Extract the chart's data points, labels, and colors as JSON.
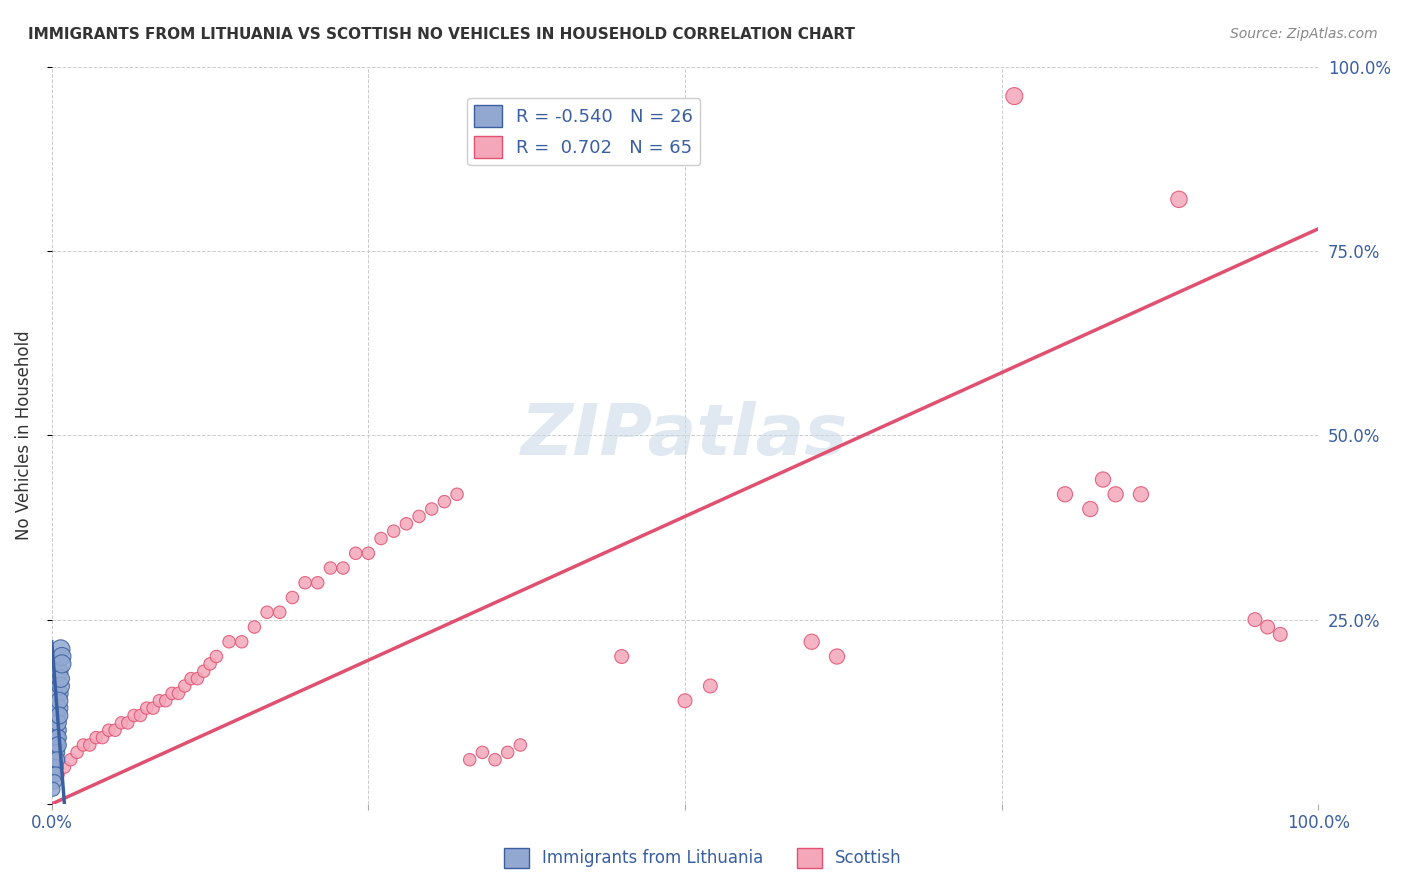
{
  "title": "IMMIGRANTS FROM LITHUANIA VS SCOTTISH NO VEHICLES IN HOUSEHOLD CORRELATION CHART",
  "source": "Source: ZipAtlas.com",
  "ylabel": "No Vehicles in Household",
  "xlabel": "",
  "watermark": "ZIPatlas",
  "legend_blue_r": "-0.540",
  "legend_blue_n": "26",
  "legend_pink_r": "0.702",
  "legend_pink_n": "65",
  "xlim": [
    0.0,
    1.0
  ],
  "ylim": [
    0.0,
    1.0
  ],
  "xticks": [
    0.0,
    0.25,
    0.5,
    0.75,
    1.0
  ],
  "yticks": [
    0.0,
    0.25,
    0.5,
    0.75,
    1.0
  ],
  "xticklabels": [
    "0.0%",
    "",
    "",
    "",
    "100.0%"
  ],
  "yticklabels": [
    "",
    "25.0%",
    "50.0%",
    "75.0%",
    "100.0%"
  ],
  "blue_color": "#92a8d1",
  "pink_color": "#f4a7b9",
  "blue_line_color": "#3a5fa0",
  "pink_line_color": "#e05070",
  "blue_scatter": [
    [
      0.005,
      0.18
    ],
    [
      0.007,
      0.21
    ],
    [
      0.006,
      0.15
    ],
    [
      0.008,
      0.2
    ],
    [
      0.004,
      0.12
    ],
    [
      0.003,
      0.08
    ],
    [
      0.005,
      0.1
    ],
    [
      0.006,
      0.13
    ],
    [
      0.007,
      0.16
    ],
    [
      0.004,
      0.09
    ],
    [
      0.003,
      0.07
    ],
    [
      0.005,
      0.11
    ],
    [
      0.006,
      0.14
    ],
    [
      0.007,
      0.17
    ],
    [
      0.008,
      0.19
    ],
    [
      0.004,
      0.08
    ],
    [
      0.003,
      0.06
    ],
    [
      0.005,
      0.09
    ],
    [
      0.006,
      0.12
    ],
    [
      0.004,
      0.07
    ],
    [
      0.003,
      0.05
    ],
    [
      0.005,
      0.08
    ],
    [
      0.004,
      0.06
    ],
    [
      0.003,
      0.04
    ],
    [
      0.002,
      0.03
    ],
    [
      0.001,
      0.02
    ]
  ],
  "blue_sizes": [
    200,
    180,
    160,
    170,
    150,
    130,
    140,
    150,
    160,
    130,
    120,
    140,
    150,
    160,
    170,
    130,
    120,
    140,
    150,
    130,
    120,
    140,
    130,
    120,
    110,
    100
  ],
  "pink_scatter": [
    [
      0.005,
      0.04
    ],
    [
      0.01,
      0.05
    ],
    [
      0.015,
      0.06
    ],
    [
      0.02,
      0.07
    ],
    [
      0.025,
      0.08
    ],
    [
      0.03,
      0.08
    ],
    [
      0.035,
      0.09
    ],
    [
      0.04,
      0.09
    ],
    [
      0.045,
      0.1
    ],
    [
      0.05,
      0.1
    ],
    [
      0.055,
      0.11
    ],
    [
      0.06,
      0.11
    ],
    [
      0.065,
      0.12
    ],
    [
      0.07,
      0.12
    ],
    [
      0.075,
      0.13
    ],
    [
      0.08,
      0.13
    ],
    [
      0.085,
      0.14
    ],
    [
      0.09,
      0.14
    ],
    [
      0.095,
      0.15
    ],
    [
      0.1,
      0.15
    ],
    [
      0.105,
      0.16
    ],
    [
      0.11,
      0.17
    ],
    [
      0.115,
      0.17
    ],
    [
      0.12,
      0.18
    ],
    [
      0.125,
      0.19
    ],
    [
      0.13,
      0.2
    ],
    [
      0.14,
      0.22
    ],
    [
      0.15,
      0.22
    ],
    [
      0.16,
      0.24
    ],
    [
      0.17,
      0.26
    ],
    [
      0.18,
      0.26
    ],
    [
      0.19,
      0.28
    ],
    [
      0.2,
      0.3
    ],
    [
      0.21,
      0.3
    ],
    [
      0.22,
      0.32
    ],
    [
      0.23,
      0.32
    ],
    [
      0.24,
      0.34
    ],
    [
      0.25,
      0.34
    ],
    [
      0.26,
      0.36
    ],
    [
      0.27,
      0.37
    ],
    [
      0.28,
      0.38
    ],
    [
      0.29,
      0.39
    ],
    [
      0.3,
      0.4
    ],
    [
      0.31,
      0.41
    ],
    [
      0.32,
      0.42
    ],
    [
      0.33,
      0.06
    ],
    [
      0.34,
      0.07
    ],
    [
      0.35,
      0.06
    ],
    [
      0.36,
      0.07
    ],
    [
      0.37,
      0.08
    ],
    [
      0.45,
      0.2
    ],
    [
      0.5,
      0.14
    ],
    [
      0.52,
      0.16
    ],
    [
      0.6,
      0.22
    ],
    [
      0.62,
      0.2
    ],
    [
      0.8,
      0.42
    ],
    [
      0.82,
      0.4
    ],
    [
      0.84,
      0.42
    ],
    [
      0.83,
      0.44
    ],
    [
      0.86,
      0.42
    ],
    [
      0.76,
      0.96
    ],
    [
      0.89,
      0.82
    ],
    [
      0.95,
      0.25
    ],
    [
      0.96,
      0.24
    ],
    [
      0.97,
      0.23
    ]
  ],
  "pink_sizes": [
    80,
    80,
    80,
    80,
    80,
    80,
    80,
    80,
    80,
    80,
    80,
    80,
    80,
    80,
    80,
    80,
    80,
    80,
    80,
    80,
    80,
    80,
    80,
    80,
    80,
    80,
    80,
    80,
    80,
    80,
    80,
    80,
    80,
    80,
    80,
    80,
    80,
    80,
    80,
    80,
    80,
    80,
    80,
    80,
    80,
    80,
    80,
    80,
    80,
    80,
    100,
    100,
    100,
    120,
    120,
    120,
    120,
    120,
    120,
    120,
    150,
    140,
    100,
    100,
    100
  ],
  "pink_line_x": [
    0.0,
    1.0
  ],
  "pink_line_y": [
    0.0,
    0.78
  ],
  "blue_line_x": [
    0.0,
    0.01
  ],
  "blue_line_y": [
    0.22,
    0.0
  ],
  "grid_color": "#cccccc",
  "background_color": "#ffffff",
  "title_color": "#333333",
  "axis_label_color": "#333333",
  "tick_color": "#3a5fa0",
  "right_tick_color": "#3a5fa0"
}
